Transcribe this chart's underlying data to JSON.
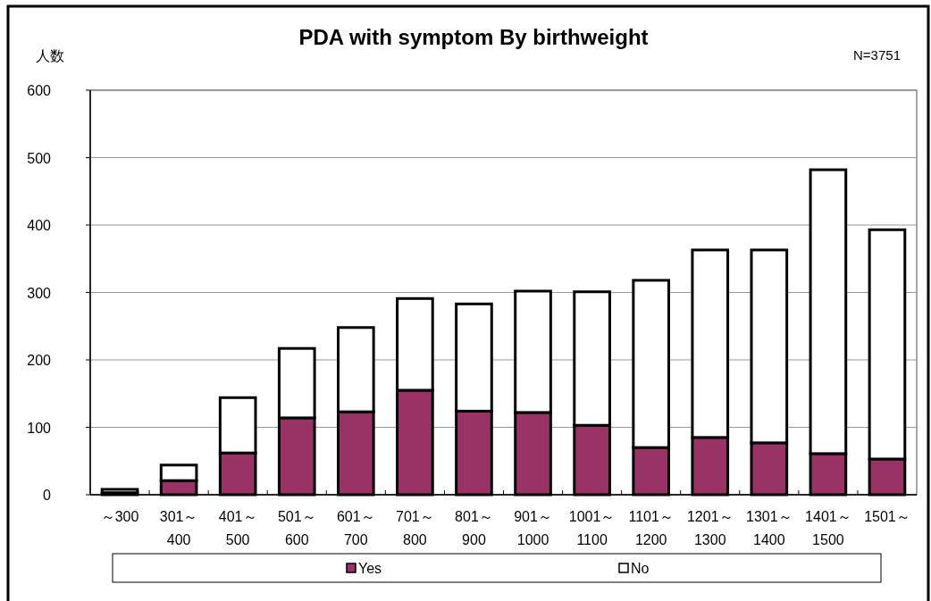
{
  "chart_data": {
    "type": "bar",
    "title": "PDA with symptom By birthweight",
    "ylabel": "人数",
    "annotations": [
      "N=3751"
    ],
    "categories": [
      "～300",
      "301～400",
      "401～500",
      "501～600",
      "601～700",
      "701～800",
      "801～900",
      "901～1000",
      "1001～1100",
      "1101～1200",
      "1201～1300",
      "1301～1400",
      "1401～1500",
      "1501～"
    ],
    "series": [
      {
        "name": "Yes",
        "color": "#993366",
        "values": [
          3,
          21,
          62,
          114,
          123,
          155,
          124,
          122,
          103,
          70,
          85,
          77,
          61,
          53
        ]
      },
      {
        "name": "No",
        "color": "#ffffff",
        "values": [
          5,
          23,
          82,
          103,
          125,
          136,
          159,
          180,
          198,
          248,
          278,
          286,
          421,
          340
        ]
      }
    ],
    "stacked": true,
    "ylim": [
      0,
      600
    ],
    "yticks": [
      0,
      100,
      200,
      300,
      400,
      500,
      600
    ],
    "grid": "y",
    "legend": "bottom"
  }
}
